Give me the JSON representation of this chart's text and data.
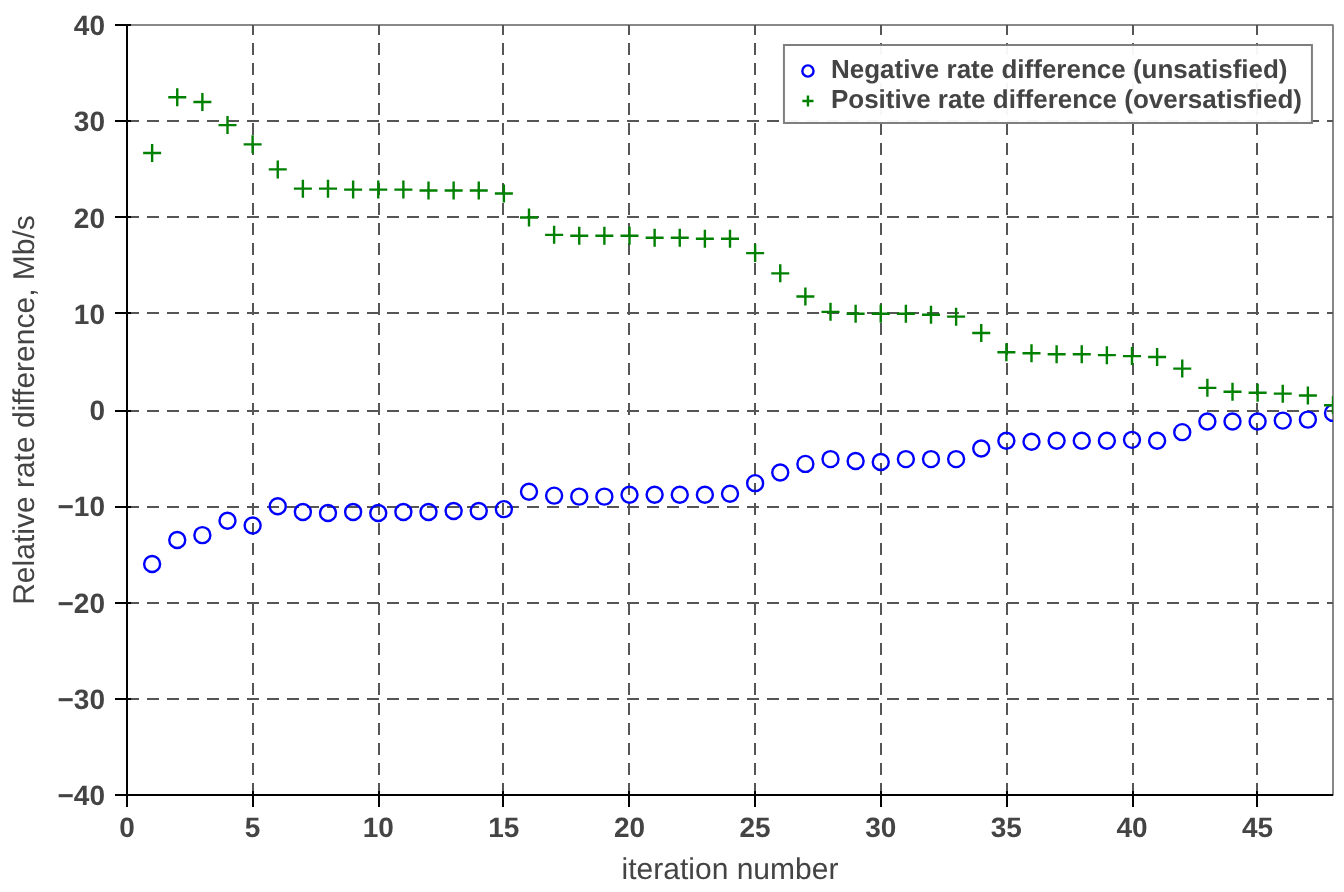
{
  "chart_data": {
    "type": "scatter",
    "xlabel": "iteration number",
    "ylabel": "Relative rate difference, Mb/s",
    "x": [
      1,
      2,
      3,
      4,
      5,
      6,
      7,
      8,
      9,
      10,
      11,
      12,
      13,
      14,
      15,
      16,
      17,
      18,
      19,
      20,
      21,
      22,
      23,
      24,
      25,
      26,
      27,
      28,
      29,
      30,
      31,
      32,
      33,
      34,
      35,
      36,
      37,
      38,
      39,
      40,
      41,
      42,
      43,
      44,
      45,
      46,
      47,
      48
    ],
    "series": [
      {
        "name": "Negative rate difference (unsatisfied)",
        "color": "#0000ff",
        "marker": "circle",
        "values": [
          -16,
          -13.5,
          -13,
          -11.5,
          -12,
          -10,
          -10.6,
          -10.7,
          -10.6,
          -10.7,
          -10.6,
          -10.6,
          -10.5,
          -10.5,
          -10.3,
          -8.5,
          -8.9,
          -9,
          -9,
          -8.8,
          -8.8,
          -8.8,
          -8.8,
          -8.7,
          -7.6,
          -6.5,
          -5.6,
          -5.1,
          -5.3,
          -5.4,
          -5.1,
          -5.1,
          -5.1,
          -4,
          -3.2,
          -3.3,
          -3.2,
          -3.2,
          -3.2,
          -3.1,
          -3.2,
          -2.3,
          -1.2,
          -1.2,
          -1.2,
          -1.1,
          -1,
          -0.3
        ]
      },
      {
        "name": "Positive rate difference (oversatisfied)",
        "color": "#008000",
        "marker": "cross",
        "values": [
          26.7,
          32.5,
          32,
          29.6,
          27.6,
          25,
          23,
          23,
          22.9,
          22.9,
          22.9,
          22.8,
          22.8,
          22.8,
          22.5,
          20,
          18.2,
          18.1,
          18.1,
          18.1,
          17.9,
          17.9,
          17.8,
          17.8,
          16.3,
          14.2,
          11.8,
          10.2,
          10,
          10,
          10,
          9.9,
          9.7,
          8,
          6,
          5.9,
          5.8,
          5.8,
          5.7,
          5.6,
          5.5,
          4.3,
          2.3,
          1.9,
          1.8,
          1.7,
          1.5,
          0.5
        ]
      }
    ],
    "xlim": [
      0,
      48
    ],
    "xticks": [
      0,
      5,
      10,
      15,
      20,
      25,
      30,
      35,
      40,
      45
    ],
    "ylim": [
      -40,
      40
    ],
    "yticks": [
      -40,
      -30,
      -20,
      -10,
      0,
      10,
      20,
      30,
      40
    ],
    "grid": true,
    "legend": "top right"
  }
}
